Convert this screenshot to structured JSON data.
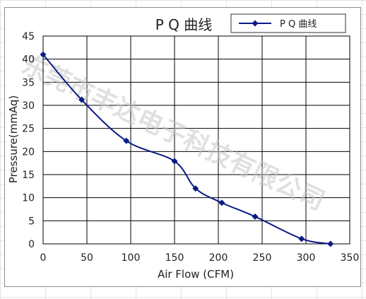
{
  "chart_data": {
    "type": "line",
    "title": "P Q 曲线",
    "xlabel": "Air Flow (CFM)",
    "ylabel": "Pressure(mmAq)",
    "xlim": [
      0,
      350
    ],
    "ylim": [
      0,
      45
    ],
    "xticks": [
      0,
      50,
      100,
      150,
      200,
      250,
      300,
      350
    ],
    "yticks": [
      0,
      5,
      10,
      15,
      20,
      25,
      30,
      35,
      40,
      45
    ],
    "grid": true,
    "legend_position": "top-right",
    "series": [
      {
        "name": "P Q 曲线",
        "color": "#0c1a85",
        "marker": "diamond",
        "x": [
          0,
          44,
          95,
          150,
          174,
          204,
          242,
          295,
          328
        ],
        "y": [
          41,
          31.2,
          22.3,
          17.9,
          12.0,
          8.9,
          5.9,
          1.1,
          0
        ]
      }
    ]
  },
  "watermark": "东莞市丰达电子科技有限公司"
}
